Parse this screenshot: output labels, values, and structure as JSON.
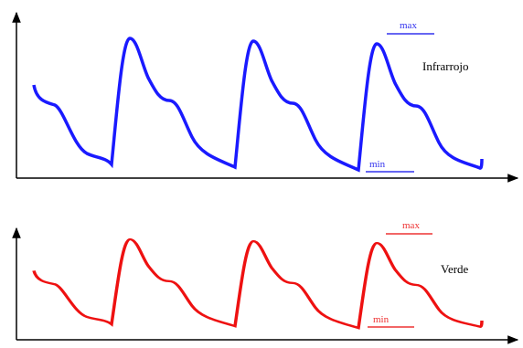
{
  "panels": [
    {
      "label": "Infrarrojo",
      "max_label": "max",
      "min_label": "min"
    },
    {
      "label": "Verde",
      "max_label": "max",
      "min_label": "min"
    }
  ]
}
